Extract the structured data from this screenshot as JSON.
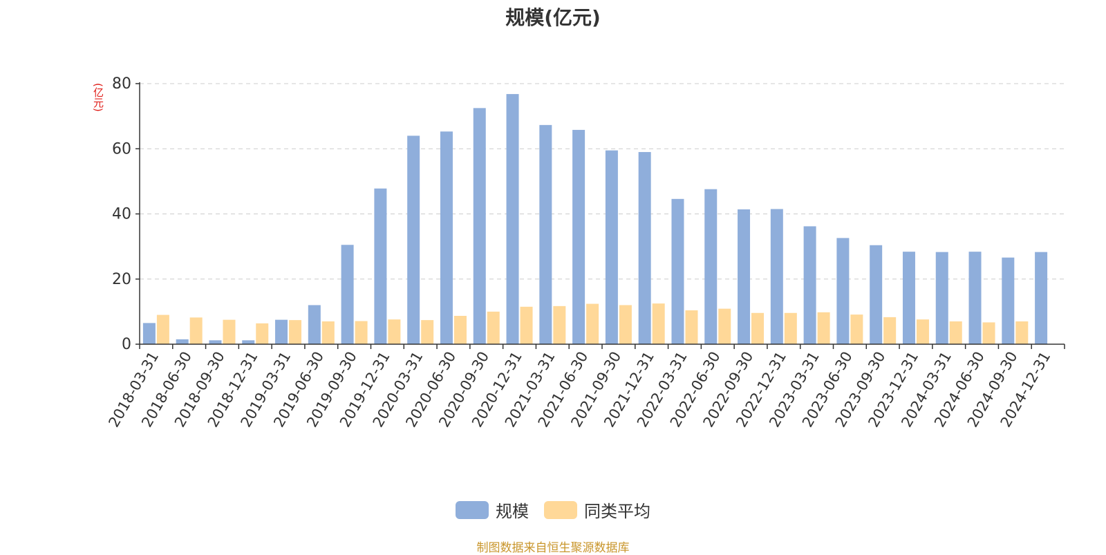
{
  "chart_data": {
    "type": "bar",
    "title": "规模(亿元)",
    "ylabel": "(亿元)",
    "ylim": [
      0,
      80
    ],
    "yticks": [
      "0",
      "20",
      "40",
      "60",
      "80"
    ],
    "grid": true,
    "legend_position": "bottom",
    "categories": [
      "2018-03-31",
      "2018-06-30",
      "2018-09-30",
      "2018-12-31",
      "2019-03-31",
      "2019-06-30",
      "2019-09-30",
      "2019-12-31",
      "2020-03-31",
      "2020-06-30",
      "2020-09-30",
      "2020-12-31",
      "2021-03-31",
      "2021-06-30",
      "2021-09-30",
      "2021-12-31",
      "2022-03-31",
      "2022-06-30",
      "2022-09-30",
      "2022-12-31",
      "2023-03-31",
      "2023-06-30",
      "2023-09-30",
      "2023-12-31",
      "2024-03-31",
      "2024-06-30",
      "2024-09-30",
      "2024-12-31"
    ],
    "series": [
      {
        "name": "规模",
        "color": "#8faedb",
        "values": [
          6.5,
          1.5,
          1.2,
          1.2,
          7.5,
          12.0,
          30.5,
          47.8,
          64.0,
          65.3,
          72.5,
          76.8,
          67.3,
          65.8,
          59.5,
          59.0,
          44.6,
          47.6,
          41.4,
          41.5,
          36.2,
          32.6,
          30.4,
          28.4,
          28.3,
          28.4,
          26.6,
          28.3
        ]
      },
      {
        "name": "同类平均",
        "color": "#ffd898",
        "values": [
          9.0,
          8.2,
          7.5,
          6.4,
          7.4,
          7.0,
          7.1,
          7.6,
          7.4,
          8.7,
          10.0,
          11.5,
          11.7,
          12.4,
          12.0,
          12.5,
          10.4,
          10.9,
          9.6,
          9.6,
          9.8,
          9.1,
          8.3,
          7.6,
          7.0,
          6.7,
          7.0,
          null
        ]
      }
    ]
  },
  "source_note": "制图数据来自恒生聚源数据库"
}
